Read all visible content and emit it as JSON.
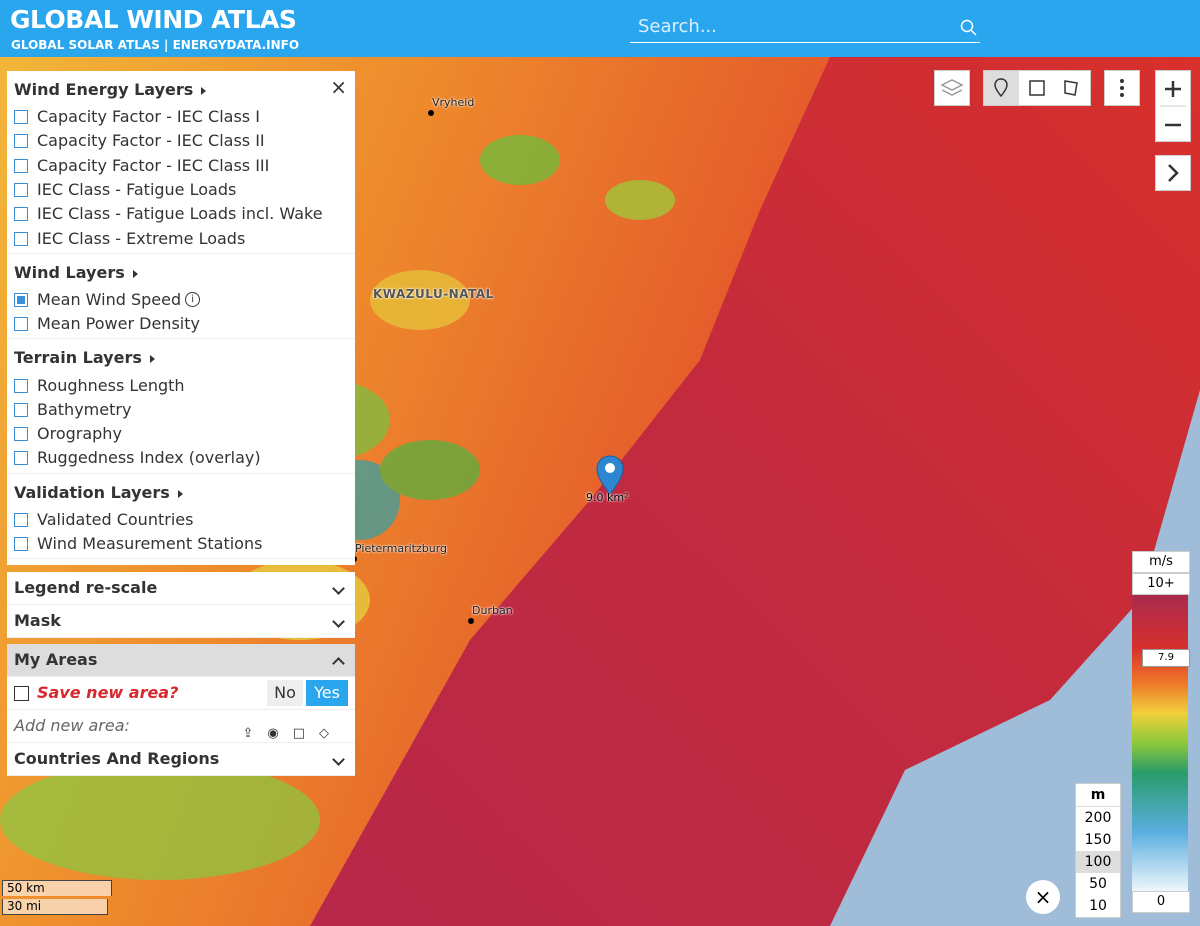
{
  "header": {
    "title": "GLOBAL WIND ATLAS",
    "subtitle": "GLOBAL SOLAR ATLAS | ENERGYDATA.INFO",
    "search_placeholder": "Search..."
  },
  "layers_panel": {
    "sections": [
      {
        "title": "Wind Energy Layers",
        "items": [
          {
            "label": "Capacity Factor - IEC Class I",
            "checked": false
          },
          {
            "label": "Capacity Factor - IEC Class II",
            "checked": false
          },
          {
            "label": "Capacity Factor - IEC Class III",
            "checked": false
          },
          {
            "label": "IEC Class - Fatigue Loads",
            "checked": false
          },
          {
            "label": "IEC Class - Fatigue Loads incl. Wake",
            "checked": false
          },
          {
            "label": "IEC Class - Extreme Loads",
            "checked": false
          }
        ]
      },
      {
        "title": "Wind Layers",
        "items": [
          {
            "label": "Mean Wind Speed",
            "checked": true,
            "info": true
          },
          {
            "label": "Mean Power Density",
            "checked": false
          }
        ]
      },
      {
        "title": "Terrain Layers",
        "items": [
          {
            "label": "Roughness Length",
            "checked": false
          },
          {
            "label": "Bathymetry",
            "checked": false
          },
          {
            "label": "Orography",
            "checked": false
          },
          {
            "label": "Ruggedness Index (overlay)",
            "checked": false
          }
        ]
      },
      {
        "title": "Validation Layers",
        "items": [
          {
            "label": "Validated Countries",
            "checked": false
          },
          {
            "label": "Wind Measurement Stations",
            "checked": false
          }
        ]
      }
    ]
  },
  "collapsibles": [
    "Legend re-scale",
    "Mask"
  ],
  "my_areas": {
    "title": "My Areas",
    "save_prompt": "Save new area?",
    "no": "No",
    "yes": "Yes",
    "add_label": "Add new area:"
  },
  "countries": "Countries And Regions",
  "map_labels": [
    {
      "text": "Vryheid",
      "kind": "town"
    },
    {
      "text": "KWAZULU-NATAL",
      "kind": "region"
    },
    {
      "text": "Pietermaritzburg",
      "kind": "town"
    },
    {
      "text": "Durban",
      "kind": "town"
    }
  ],
  "marker_label": "9.0 km²",
  "scale_bar": [
    "50 km",
    "30 mi"
  ],
  "legend": {
    "unit": "m/s",
    "ticks": [
      {
        "value": 10,
        "label": "10+"
      },
      0
    ],
    "pointer": 7.9
  },
  "height_selector": {
    "unit": "m",
    "options": [
      200,
      150,
      100,
      50,
      10
    ],
    "selected": 100
  }
}
